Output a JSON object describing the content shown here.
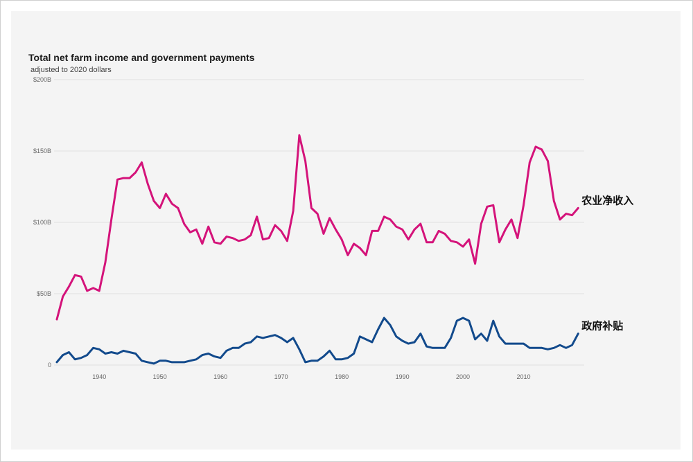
{
  "chart_data": {
    "type": "line",
    "title": "Total net farm income and government payments",
    "subtitle": "adjusted to 2020 dollars",
    "xlim": [
      1933,
      2020
    ],
    "ylim": [
      0,
      200
    ],
    "y_ticks": [
      {
        "value": 0,
        "label": "0"
      },
      {
        "value": 50,
        "label": "$50B"
      },
      {
        "value": 100,
        "label": "$100B"
      },
      {
        "value": 150,
        "label": "$150B"
      },
      {
        "value": 200,
        "label": "$200B"
      }
    ],
    "x_ticks": [
      1940,
      1950,
      1960,
      1970,
      1980,
      1990,
      2000,
      2010
    ],
    "grid": true,
    "colors": {
      "net_income": "#d4137a",
      "gov_payments": "#124a8c"
    },
    "series": [
      {
        "name": "农业净收入",
        "color": "#d4137a",
        "x": [
          1933,
          1934,
          1935,
          1936,
          1937,
          1938,
          1939,
          1940,
          1941,
          1942,
          1943,
          1944,
          1945,
          1946,
          1947,
          1948,
          1949,
          1950,
          1951,
          1952,
          1953,
          1954,
          1955,
          1956,
          1957,
          1958,
          1959,
          1960,
          1961,
          1962,
          1963,
          1964,
          1965,
          1966,
          1967,
          1968,
          1969,
          1970,
          1971,
          1972,
          1973,
          1974,
          1975,
          1976,
          1977,
          1978,
          1979,
          1980,
          1981,
          1982,
          1983,
          1984,
          1985,
          1986,
          1987,
          1988,
          1989,
          1990,
          1991,
          1992,
          1993,
          1994,
          1995,
          1996,
          1997,
          1998,
          1999,
          2000,
          2001,
          2002,
          2003,
          2004,
          2005,
          2006,
          2007,
          2008,
          2009,
          2010,
          2011,
          2012,
          2013,
          2014,
          2015,
          2016,
          2017,
          2018,
          2019
        ],
        "values": [
          32,
          48,
          55,
          63,
          62,
          52,
          54,
          52,
          72,
          102,
          130,
          131,
          131,
          135,
          142,
          127,
          115,
          110,
          120,
          113,
          110,
          99,
          93,
          95,
          85,
          97,
          86,
          85,
          90,
          89,
          87,
          88,
          91,
          104,
          88,
          89,
          98,
          94,
          87,
          108,
          161,
          143,
          110,
          106,
          92,
          103,
          95,
          88,
          77,
          85,
          82,
          77,
          94,
          94,
          104,
          102,
          97,
          95,
          88,
          95,
          99,
          86,
          86,
          94,
          92,
          87,
          86,
          83,
          88,
          71,
          99,
          111,
          112,
          86,
          95,
          102,
          89,
          112,
          142,
          153,
          151,
          143,
          115,
          102,
          106,
          105,
          110
        ]
      },
      {
        "name": "政府补贴",
        "color": "#124a8c",
        "x": [
          1933,
          1934,
          1935,
          1936,
          1937,
          1938,
          1939,
          1940,
          1941,
          1942,
          1943,
          1944,
          1945,
          1946,
          1947,
          1948,
          1949,
          1950,
          1951,
          1952,
          1953,
          1954,
          1955,
          1956,
          1957,
          1958,
          1959,
          1960,
          1961,
          1962,
          1963,
          1964,
          1965,
          1966,
          1967,
          1968,
          1969,
          1970,
          1971,
          1972,
          1973,
          1974,
          1975,
          1976,
          1977,
          1978,
          1979,
          1980,
          1981,
          1982,
          1983,
          1984,
          1985,
          1986,
          1987,
          1988,
          1989,
          1990,
          1991,
          1992,
          1993,
          1994,
          1995,
          1996,
          1997,
          1998,
          1999,
          2000,
          2001,
          2002,
          2003,
          2004,
          2005,
          2006,
          2007,
          2008,
          2009,
          2010,
          2011,
          2012,
          2013,
          2014,
          2015,
          2016,
          2017,
          2018,
          2019
        ],
        "values": [
          2,
          7,
          9,
          4,
          5,
          7,
          12,
          11,
          8,
          9,
          8,
          10,
          9,
          8,
          3,
          2,
          1,
          3,
          3,
          2,
          2,
          2,
          3,
          4,
          7,
          8,
          6,
          5,
          10,
          12,
          12,
          15,
          16,
          20,
          19,
          20,
          21,
          19,
          16,
          19,
          11,
          2,
          3,
          3,
          6,
          10,
          4,
          4,
          5,
          8,
          20,
          18,
          16,
          25,
          33,
          28,
          20,
          17,
          15,
          16,
          22,
          13,
          12,
          12,
          12,
          19,
          31,
          33,
          31,
          18,
          22,
          17,
          31,
          20,
          15,
          15,
          15,
          15,
          12,
          12,
          12,
          11,
          12,
          14,
          12,
          14,
          22
        ]
      }
    ]
  }
}
